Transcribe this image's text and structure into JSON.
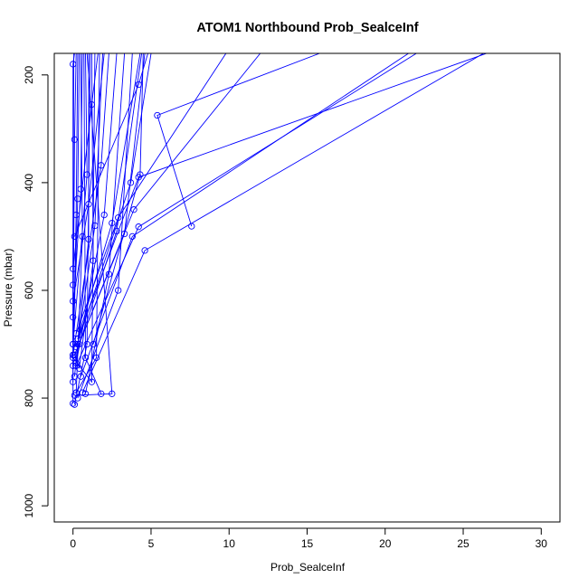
{
  "chart_data": {
    "type": "line",
    "title": "ATOM1 Northbound Prob_SealceInf",
    "xlabel": "Prob_SealceInf",
    "ylabel": "Pressure (mbar)",
    "xlim": [
      -1.2,
      31.2
    ],
    "ylim": [
      1030,
      160
    ],
    "y_reversed": true,
    "grid": false,
    "xticks": [
      0,
      5,
      10,
      15,
      20,
      25,
      30
    ],
    "yticks": [
      200,
      400,
      600,
      800,
      1000
    ],
    "color": "#0000ff",
    "series": [
      {
        "x": [
          15.8,
          5.4,
          7.6
        ],
        "y": [
          160,
          275,
          481
        ]
      },
      {
        "x": [
          4.8,
          4.2,
          0.1
        ],
        "y": [
          160,
          218,
          500
        ]
      },
      {
        "x": [
          26.5,
          4.2,
          0.3
        ],
        "y": [
          160,
          390,
          690
        ]
      },
      {
        "x": [
          26.3,
          4.6,
          0.6
        ],
        "y": [
          160,
          526,
          790
        ]
      },
      {
        "x": [
          22.0,
          4.2,
          0.2
        ],
        "y": [
          160,
          482,
          740
        ]
      },
      {
        "x": [
          12.0,
          3.9,
          0.1
        ],
        "y": [
          160,
          450,
          720
        ]
      },
      {
        "x": [
          21.5,
          3.8,
          0.5
        ],
        "y": [
          160,
          500,
          760
        ]
      },
      {
        "x": [
          9.8,
          2.9,
          0.2
        ],
        "y": [
          160,
          465,
          680
        ]
      },
      {
        "x": [
          5.0,
          3.7,
          0.2
        ],
        "y": [
          160,
          400,
          705
        ]
      },
      {
        "x": [
          4.4,
          2.8,
          0.4
        ],
        "y": [
          160,
          490,
          700
        ]
      },
      {
        "x": [
          4.6,
          3.3,
          0.1
        ],
        "y": [
          160,
          495,
          720
        ]
      },
      {
        "x": [
          3.8,
          2.9,
          0.3
        ],
        "y": [
          160,
          600,
          800
        ]
      },
      {
        "x": [
          3.3,
          2.3,
          0.8
        ],
        "y": [
          160,
          570,
          792
        ]
      },
      {
        "x": [
          2.8,
          2.0,
          0.2
        ],
        "y": [
          160,
          460,
          735
        ]
      },
      {
        "x": [
          2.3,
          1.8,
          0.0
        ],
        "y": [
          160,
          368,
          720
        ]
      },
      {
        "x": [
          1.9,
          1.4,
          0.3
        ],
        "y": [
          160,
          480,
          700
        ]
      },
      {
        "x": [
          1.6,
          1.2,
          0.0
        ],
        "y": [
          160,
          255,
          560
        ]
      },
      {
        "x": [
          1.2,
          1.3,
          0.4
        ],
        "y": [
          160,
          545,
          745
        ]
      },
      {
        "x": [
          1.0,
          1.0,
          0.1
        ],
        "y": [
          160,
          505,
          760
        ]
      },
      {
        "x": [
          0.8,
          0.9,
          0.0
        ],
        "y": [
          160,
          385,
          700
        ]
      },
      {
        "x": [
          0.6,
          0.5,
          0.0
        ],
        "y": [
          160,
          412,
          650
        ]
      },
      {
        "x": [
          0.5,
          0.6,
          0.2
        ],
        "y": [
          160,
          500,
          790
        ]
      },
      {
        "x": [
          0.4,
          0.3,
          0.0
        ],
        "y": [
          160,
          430,
          720
        ]
      },
      {
        "x": [
          0.3,
          0.2,
          0.0
        ],
        "y": [
          160,
          460,
          740
        ]
      },
      {
        "x": [
          0.2,
          0.1,
          0.0
        ],
        "y": [
          160,
          320,
          700
        ]
      },
      {
        "x": [
          0.1,
          0.0,
          0.0
        ],
        "y": [
          160,
          180,
          810
        ]
      },
      {
        "x": [
          0.05,
          0.0,
          0.0
        ],
        "y": [
          160,
          590,
          770
        ]
      },
      {
        "x": [
          1.1,
          0.9,
          0.1
        ],
        "y": [
          160,
          700,
          812
        ]
      },
      {
        "x": [
          1.4,
          1.2,
          0.0
        ],
        "y": [
          160,
          770,
          725
        ]
      },
      {
        "x": [
          1.7,
          1.5,
          0.2
        ],
        "y": [
          160,
          725,
          790
        ]
      },
      {
        "x": [
          2.0,
          1.0,
          0.0
        ],
        "y": [
          160,
          440,
          620
        ]
      },
      {
        "x": [
          4.3,
          2.5,
          0.3
        ],
        "y": [
          160,
          475,
          690
        ]
      },
      {
        "x": [
          4.5,
          4.3,
          1.3
        ],
        "y": [
          160,
          385,
          700
        ]
      },
      {
        "x": [
          0.9,
          2.5,
          0.1
        ],
        "y": [
          160,
          792,
          795
        ]
      },
      {
        "x": [
          0.7,
          0.8,
          1.8
        ],
        "y": [
          160,
          725,
          792
        ]
      }
    ]
  }
}
